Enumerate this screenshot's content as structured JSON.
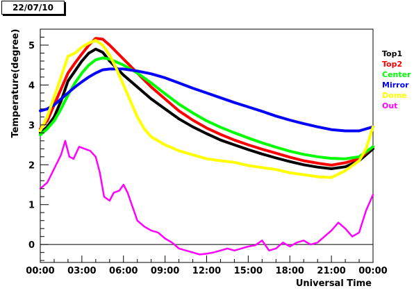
{
  "date_label": "22/07/10",
  "chart_data": {
    "type": "line",
    "title": "",
    "xlabel": "Universal Time",
    "ylabel": "Temperature(degree)",
    "xlim": [
      0,
      24
    ],
    "ylim": [
      -0.45,
      5.4
    ],
    "x_ticks": [
      {
        "value": 0,
        "label": "00:00"
      },
      {
        "value": 3,
        "label": "03:00"
      },
      {
        "value": 6,
        "label": "06:00"
      },
      {
        "value": 9,
        "label": "09:00"
      },
      {
        "value": 12,
        "label": "12:00"
      },
      {
        "value": 15,
        "label": "15:00"
      },
      {
        "value": 18,
        "label": "18:00"
      },
      {
        "value": 21,
        "label": "21:00"
      },
      {
        "value": 24,
        "label": "00:00"
      }
    ],
    "y_ticks": [
      {
        "value": 0,
        "label": "0"
      },
      {
        "value": 1,
        "label": "1"
      },
      {
        "value": 2,
        "label": "2"
      },
      {
        "value": 3,
        "label": "3"
      },
      {
        "value": 4,
        "label": "4"
      },
      {
        "value": 5,
        "label": "5"
      }
    ],
    "zero_line": true,
    "grid": false,
    "legend_position": "right",
    "series": [
      {
        "name": "Top1",
        "color": "#000000",
        "x": [
          0,
          0.5,
          1,
          1.5,
          2,
          2.5,
          3,
          3.5,
          4,
          4.5,
          5,
          6,
          7,
          8,
          9,
          10,
          11,
          12,
          13,
          14,
          15,
          16,
          17,
          18,
          19,
          20,
          21,
          22,
          23,
          24
        ],
        "y": [
          2.8,
          2.95,
          3.2,
          3.6,
          4.1,
          4.35,
          4.6,
          4.8,
          4.9,
          4.82,
          4.6,
          4.25,
          3.95,
          3.65,
          3.4,
          3.15,
          2.95,
          2.78,
          2.62,
          2.5,
          2.38,
          2.27,
          2.17,
          2.08,
          2.0,
          1.94,
          1.9,
          1.95,
          2.1,
          2.4
        ]
      },
      {
        "name": "Top2",
        "color": "#ff0000",
        "x": [
          0,
          0.5,
          1,
          1.5,
          2,
          2.5,
          3,
          3.5,
          4,
          4.5,
          5,
          6,
          7,
          8,
          9,
          10,
          11,
          12,
          13,
          14,
          15,
          16,
          17,
          18,
          19,
          20,
          21,
          22,
          23,
          24
        ],
        "y": [
          2.9,
          3.1,
          3.5,
          3.9,
          4.3,
          4.55,
          4.78,
          5.0,
          5.17,
          5.15,
          5.0,
          4.65,
          4.3,
          3.95,
          3.65,
          3.35,
          3.12,
          2.92,
          2.76,
          2.62,
          2.5,
          2.39,
          2.29,
          2.19,
          2.1,
          2.04,
          1.99,
          2.05,
          2.15,
          2.45
        ]
      },
      {
        "name": "Center",
        "color": "#00ff00",
        "x": [
          0,
          0.5,
          1,
          1.5,
          2,
          2.5,
          3,
          3.5,
          4,
          4.5,
          5,
          6,
          7,
          8,
          9,
          10,
          11,
          12,
          13,
          14,
          15,
          16,
          17,
          18,
          19,
          20,
          21,
          22,
          23,
          24
        ],
        "y": [
          2.75,
          2.9,
          3.1,
          3.4,
          3.75,
          4.05,
          4.3,
          4.5,
          4.63,
          4.68,
          4.65,
          4.5,
          4.3,
          4.05,
          3.78,
          3.52,
          3.3,
          3.1,
          2.94,
          2.8,
          2.67,
          2.55,
          2.44,
          2.34,
          2.26,
          2.2,
          2.16,
          2.15,
          2.2,
          2.45
        ]
      },
      {
        "name": "Mirror",
        "color": "#0000ff",
        "x": [
          0,
          0.5,
          1,
          1.5,
          2,
          2.5,
          3,
          3.5,
          4,
          4.5,
          5,
          6,
          7,
          8,
          9,
          10,
          11,
          12,
          13,
          14,
          15,
          16,
          17,
          18,
          19,
          20,
          21,
          22,
          23,
          24
        ],
        "y": [
          3.35,
          3.4,
          3.5,
          3.65,
          3.8,
          3.95,
          4.08,
          4.2,
          4.3,
          4.38,
          4.4,
          4.4,
          4.35,
          4.28,
          4.18,
          4.05,
          3.92,
          3.8,
          3.68,
          3.56,
          3.45,
          3.34,
          3.22,
          3.12,
          3.03,
          2.95,
          2.88,
          2.85,
          2.85,
          2.95
        ]
      },
      {
        "name": "Dome",
        "color": "#ffff00",
        "x": [
          0,
          0.5,
          1,
          1.5,
          2,
          2.5,
          3,
          3.5,
          4,
          4.5,
          5,
          5.5,
          6,
          6.5,
          7,
          7.5,
          8,
          9,
          10,
          11,
          12,
          13,
          14,
          15,
          16,
          17,
          18,
          19,
          20,
          21,
          22,
          23,
          23.5,
          24
        ],
        "y": [
          2.85,
          3.2,
          3.7,
          4.2,
          4.72,
          4.8,
          4.95,
          5.05,
          5.12,
          5.0,
          4.75,
          4.4,
          4.0,
          3.6,
          3.2,
          2.9,
          2.7,
          2.5,
          2.35,
          2.25,
          2.15,
          2.1,
          2.06,
          1.98,
          1.93,
          1.88,
          1.8,
          1.75,
          1.7,
          1.68,
          1.85,
          2.1,
          2.4,
          2.95
        ]
      },
      {
        "name": "Out",
        "color": "#ff00ff",
        "x": [
          0,
          0.5,
          1,
          1.5,
          1.8,
          2.1,
          2.4,
          2.8,
          3.2,
          3.6,
          4.0,
          4.3,
          4.6,
          5.0,
          5.3,
          5.7,
          6.0,
          6.3,
          6.7,
          7.0,
          7.5,
          8.0,
          8.5,
          9.0,
          9.5,
          10.0,
          10.5,
          11,
          11.5,
          12,
          12.5,
          13,
          13.5,
          14,
          14.5,
          15,
          15.5,
          16,
          16.5,
          17,
          17.5,
          18,
          18.5,
          19,
          19.5,
          20,
          20.5,
          21,
          21.5,
          22,
          22.5,
          23,
          23.5,
          24
        ],
        "y": [
          1.4,
          1.55,
          1.9,
          2.25,
          2.6,
          2.2,
          2.15,
          2.45,
          2.4,
          2.35,
          2.2,
          1.8,
          1.2,
          1.1,
          1.3,
          1.35,
          1.5,
          1.3,
          0.9,
          0.6,
          0.45,
          0.35,
          0.3,
          0.15,
          0.05,
          -0.1,
          -0.15,
          -0.2,
          -0.25,
          -0.23,
          -0.2,
          -0.15,
          -0.1,
          -0.15,
          -0.1,
          -0.05,
          -0.02,
          0.1,
          -0.15,
          -0.1,
          0.05,
          -0.05,
          0.05,
          0.1,
          0.0,
          0.05,
          0.2,
          0.35,
          0.55,
          0.4,
          0.2,
          0.3,
          0.85,
          1.25
        ]
      }
    ]
  }
}
